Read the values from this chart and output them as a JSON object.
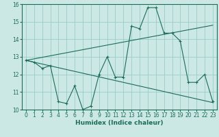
{
  "xlabel": "Humidex (Indice chaleur)",
  "bg_color": "#cce8e4",
  "grid_color": "#99cccc",
  "line_color": "#1a6b5a",
  "xlim": [
    -0.5,
    23.5
  ],
  "ylim": [
    10,
    16
  ],
  "xticks": [
    0,
    1,
    2,
    3,
    4,
    5,
    6,
    7,
    8,
    9,
    10,
    11,
    12,
    13,
    14,
    15,
    16,
    17,
    18,
    19,
    20,
    21,
    22,
    23
  ],
  "yticks": [
    10,
    11,
    12,
    13,
    14,
    15,
    16
  ],
  "line1_x": [
    0,
    1,
    2,
    3,
    4,
    5,
    6,
    7,
    8,
    9,
    10,
    11,
    12,
    13,
    14,
    15,
    16,
    17,
    18,
    19,
    20,
    21,
    22,
    23
  ],
  "line1_y": [
    12.8,
    12.7,
    12.35,
    12.5,
    10.45,
    10.35,
    11.35,
    10.0,
    10.2,
    12.0,
    13.0,
    11.85,
    11.85,
    14.75,
    14.6,
    15.8,
    15.8,
    14.35,
    14.35,
    13.9,
    11.55,
    11.55,
    12.0,
    10.45
  ],
  "line2_x": [
    0,
    23
  ],
  "line2_y": [
    12.8,
    14.8
  ],
  "line3_x": [
    0,
    23
  ],
  "line3_y": [
    12.8,
    10.4
  ]
}
